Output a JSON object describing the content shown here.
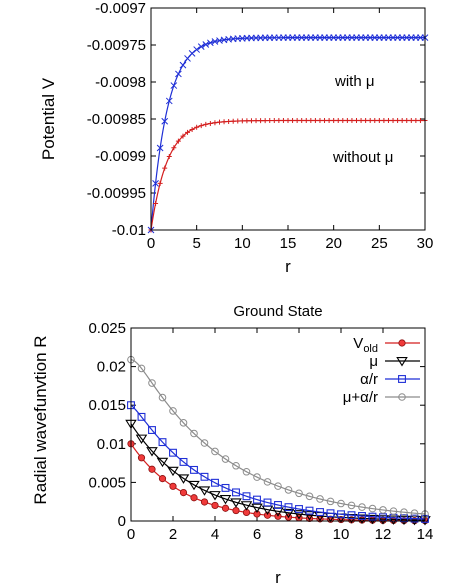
{
  "chart_data": [
    {
      "type": "line",
      "title": "",
      "xlabel": "r",
      "ylabel": "Potential V",
      "xlim": [
        0,
        30
      ],
      "ylim": [
        -0.01,
        -0.0097
      ],
      "xticks": [
        "0",
        "5",
        "10",
        "15",
        "20",
        "25",
        "30"
      ],
      "yticks": [
        "-0.01",
        "-0.00995",
        "-0.0099",
        "-0.00985",
        "-0.0098",
        "-0.00975",
        "-0.0097"
      ],
      "legend": "none",
      "grid": false,
      "annotations": [
        "with μ",
        "without μ"
      ],
      "series": [
        {
          "label": "with μ",
          "color": "#1f2fd6",
          "marker": "x",
          "curve": {
            "y_start": -0.01,
            "y_asymptote": -0.00974,
            "decay_length": 1.8
          },
          "x": [
            0,
            0.5,
            1,
            1.5,
            2,
            2.5,
            3,
            4,
            5,
            7.5,
            10,
            15,
            20,
            25,
            30
          ],
          "values": [
            -0.01,
            -0.009932,
            -0.009876,
            -0.009836,
            -0.009807,
            -0.009787,
            -0.009772,
            -0.009755,
            -0.009747,
            -0.009741,
            -0.00974,
            -0.00974,
            -0.00974,
            -0.00974,
            -0.00974
          ]
        },
        {
          "label": "without μ",
          "color": "#d41f1f",
          "marker": "+",
          "curve": {
            "y_start": -0.01,
            "y_asymptote": -0.009852,
            "decay_length": 1.8
          },
          "x": [
            0,
            0.5,
            1,
            1.5,
            2,
            2.5,
            3,
            4,
            5,
            7.5,
            10,
            15,
            20,
            25,
            30
          ],
          "values": [
            -0.01,
            -0.009961,
            -0.00993,
            -0.009907,
            -0.00989,
            -0.009878,
            -0.009871,
            -0.009861,
            -0.009856,
            -0.009853,
            -0.009852,
            -0.009852,
            -0.009852,
            -0.009852,
            -0.009852
          ]
        }
      ]
    },
    {
      "type": "line",
      "title": "Ground State",
      "xlabel": "r",
      "ylabel": "Radial wavefunvtion R",
      "xlim": [
        0,
        14
      ],
      "ylim": [
        0,
        0.025
      ],
      "xticks": [
        "0",
        "2",
        "4",
        "6",
        "8",
        "10",
        "12",
        "14"
      ],
      "yticks": [
        "0",
        "0.005",
        "0.01",
        "0.015",
        "0.02",
        "0.025"
      ],
      "legend": "top-right",
      "grid": false,
      "series": [
        {
          "label": "V",
          "label_sub": "old",
          "color": "#d41f1f",
          "marker": "circle-filled",
          "curve": {
            "a": 0.01,
            "k": 0.4
          },
          "x": [
            0,
            2,
            4,
            6,
            8,
            10,
            12,
            14
          ],
          "values": [
            0.01,
            0.0045,
            0.002,
            0.0009,
            0.0004,
            0.0002,
            0.0001,
            0.0
          ]
        },
        {
          "label": "μ",
          "label_sub": "",
          "color": "#000000",
          "marker": "triangle-down",
          "curve": {
            "a": 0.0126,
            "k": 0.33
          },
          "x": [
            0,
            2,
            4,
            6,
            8,
            10,
            12,
            14
          ],
          "values": [
            0.0126,
            0.0065,
            0.0034,
            0.0017,
            0.0009,
            0.0005,
            0.0002,
            0.0001
          ]
        },
        {
          "label": "α/r",
          "label_sub": "",
          "color": "#1f2fd6",
          "marker": "square-open",
          "curve": {
            "a": 0.0158,
            "k": 0.29,
            "rise": 0.0008
          },
          "x": [
            0,
            2,
            4,
            6,
            8,
            10,
            12,
            14
          ],
          "values": [
            0.015,
            0.0088,
            0.0049,
            0.0028,
            0.0015,
            0.0009,
            0.0005,
            0.0003
          ]
        },
        {
          "label": "μ+α/r",
          "label_sub": "",
          "color": "#8c8c8c",
          "marker": "circle-open",
          "curve": {
            "a": 0.0226,
            "k": 0.23,
            "rise": 0.0017
          },
          "x": [
            0,
            2,
            4,
            6,
            8,
            10,
            12,
            14
          ],
          "values": [
            0.0209,
            0.0145,
            0.0091,
            0.0057,
            0.0036,
            0.0023,
            0.0014,
            0.0009
          ]
        }
      ]
    }
  ]
}
